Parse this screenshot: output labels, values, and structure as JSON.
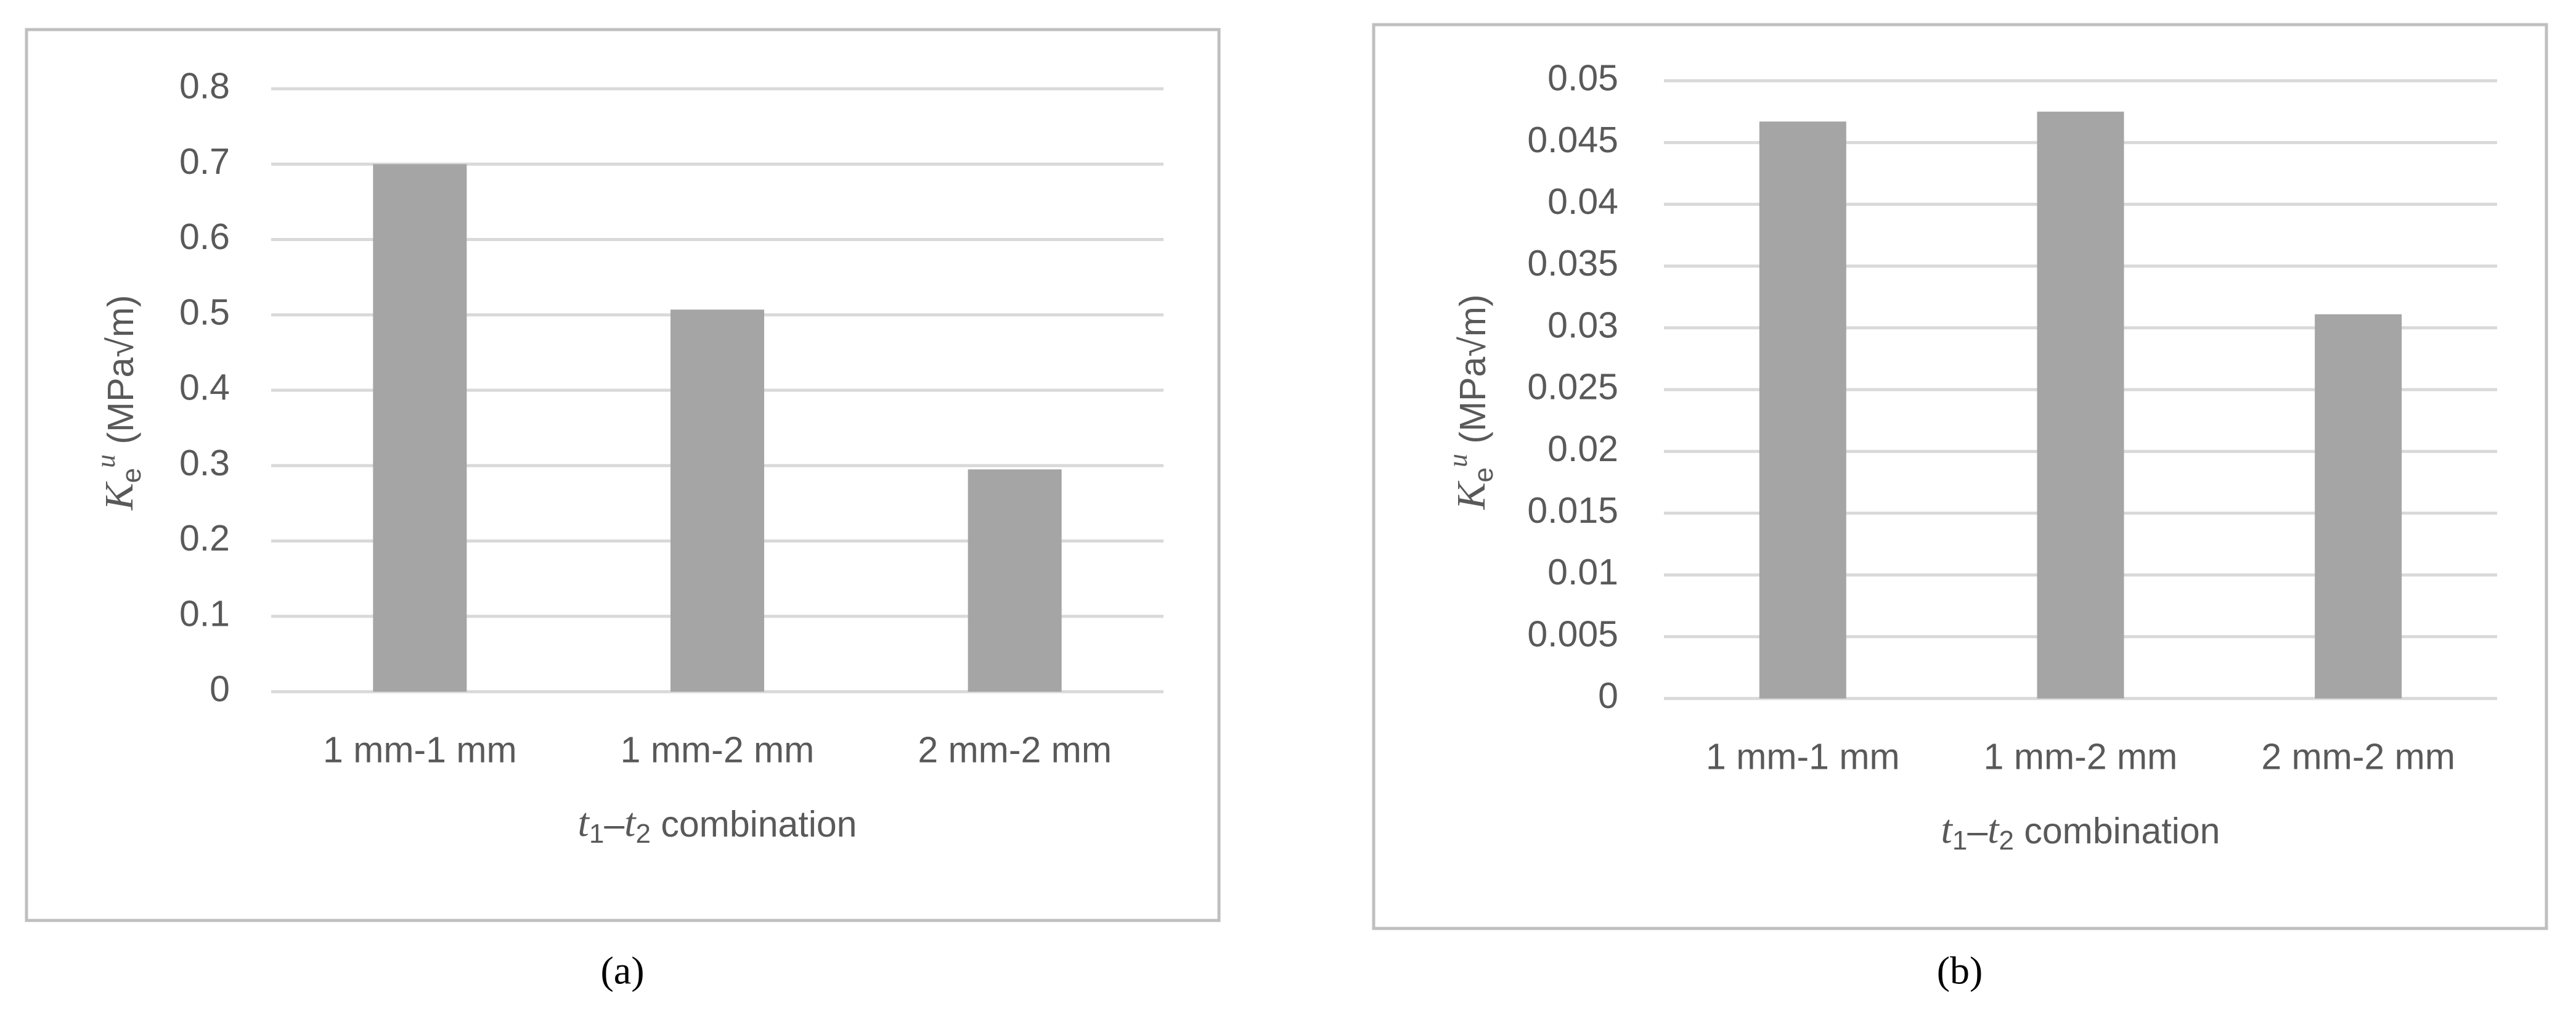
{
  "chart_data": [
    {
      "type": "bar",
      "categories": [
        "1 mm-1 mm",
        "1 mm-2 mm",
        "2 mm-2 mm"
      ],
      "values": [
        0.7,
        0.507,
        0.295
      ],
      "color": "#a5a5a5",
      "ylim": [
        0,
        0.8
      ],
      "yticks": [
        0,
        0.1,
        0.2,
        0.3,
        0.4,
        0.5,
        0.6,
        0.7,
        0.8
      ],
      "grid": true,
      "y_label": [
        "K",
        "e",
        "u",
        " (MPa√m)"
      ],
      "x_label": [
        "t",
        "1",
        "–",
        "t",
        "2",
        " combination"
      ],
      "caption": "(a)"
    },
    {
      "type": "bar",
      "categories": [
        "1 mm-1 mm",
        "1 mm-2 mm",
        "2 mm-2 mm"
      ],
      "values": [
        0.0467,
        0.0475,
        0.0311
      ],
      "color": "#a5a5a5",
      "ylim": [
        0,
        0.05
      ],
      "yticks": [
        0,
        0.005,
        0.01,
        0.015,
        0.02,
        0.025,
        0.03,
        0.035,
        0.04,
        0.045,
        0.05
      ],
      "grid": true,
      "y_label": [
        "K",
        "e",
        "u",
        " (MPa√m)"
      ],
      "x_label": [
        "t",
        "1",
        "–",
        "t",
        "2",
        " combination"
      ],
      "caption": "(b)"
    }
  ]
}
